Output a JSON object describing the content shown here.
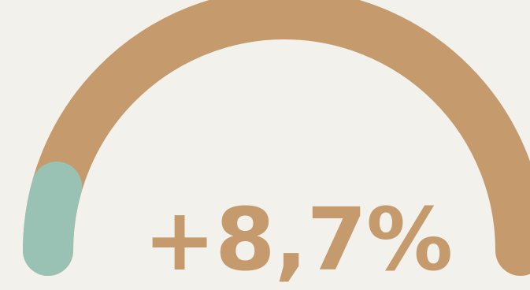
{
  "gauge": {
    "value_label": "+8,7%",
    "fill_fraction": 0.087,
    "colors": {
      "track": "#c59a6c",
      "fill": "#9ac2b4",
      "text": "#c59a6c",
      "background": "#f3f1ec"
    }
  }
}
